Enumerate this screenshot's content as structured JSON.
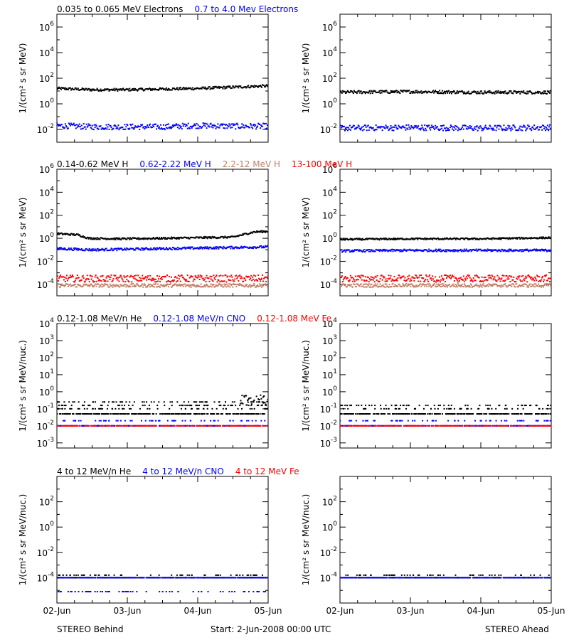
{
  "colors": {
    "black": "#000000",
    "blue": "#0000ff",
    "red": "#ff0000",
    "brown": "#c08068"
  },
  "footer": {
    "left": "STEREO Behind",
    "center": "Start:  2-Jun-2008 00:00 UTC",
    "right": "STEREO Ahead"
  },
  "xaxis": {
    "ticks": [
      "02-Jun",
      "03-Jun",
      "04-Jun",
      "05-Jun"
    ]
  },
  "rows": [
    {
      "id": "electrons",
      "ylabel": "1/(cm² s sr MeV)",
      "log_min": -3,
      "log_max": 7,
      "ticks": [
        {
          "label": "10",
          "exp": "-2",
          "v": -2
        },
        {
          "label": "10",
          "exp": "0",
          "v": 0
        },
        {
          "label": "10",
          "exp": "2",
          "v": 2
        },
        {
          "label": "10",
          "exp": "4",
          "v": 4
        },
        {
          "label": "10",
          "exp": "6",
          "v": 6
        }
      ],
      "legend": [
        {
          "text": "0.035 to 0.065 MeV Electrons",
          "color": "#000000"
        },
        {
          "text": "0.7 to 4.0 Mev Electrons",
          "color": "#0000ff"
        }
      ]
    },
    {
      "id": "protons",
      "ylabel": "1/(cm² s sr MeV)",
      "log_min": -5,
      "log_max": 6,
      "ticks": [
        {
          "label": "10",
          "exp": "-4",
          "v": -4
        },
        {
          "label": "10",
          "exp": "-2",
          "v": -2
        },
        {
          "label": "10",
          "exp": "0",
          "v": 0
        },
        {
          "label": "10",
          "exp": "2",
          "v": 2
        },
        {
          "label": "10",
          "exp": "4",
          "v": 4
        },
        {
          "label": "10",
          "exp": "6",
          "v": 6
        }
      ],
      "legend": [
        {
          "text": "0.14-0.62 MeV H",
          "color": "#000000"
        },
        {
          "text": "0.62-2.22 MeV H",
          "color": "#0000ff"
        },
        {
          "text": "2.2-12 MeV H",
          "color": "#c08068"
        },
        {
          "text": "13-100 MeV H",
          "color": "#ff0000"
        }
      ]
    },
    {
      "id": "heavy_low",
      "ylabel": "1/(cm² s sr MeV/nuc.)",
      "log_min": -3.3,
      "log_max": 4,
      "ticks": [
        {
          "label": "10",
          "exp": "-3",
          "v": -3
        },
        {
          "label": "10",
          "exp": "-2",
          "v": -2
        },
        {
          "label": "10",
          "exp": "-1",
          "v": -1
        },
        {
          "label": "10",
          "exp": "0",
          "v": 0
        },
        {
          "label": "10",
          "exp": "1",
          "v": 1
        },
        {
          "label": "10",
          "exp": "2",
          "v": 2
        },
        {
          "label": "10",
          "exp": "3",
          "v": 3
        },
        {
          "label": "10",
          "exp": "4",
          "v": 4
        }
      ],
      "legend": [
        {
          "text": "0.12-1.08 MeV/n He",
          "color": "#000000"
        },
        {
          "text": "0.12-1.08 MeV/n CNO",
          "color": "#0000ff"
        },
        {
          "text": "0.12-1.08 MeV Fe",
          "color": "#ff0000"
        }
      ]
    },
    {
      "id": "heavy_high",
      "ylabel": "1/(cm² s sr MeV/nuc.)",
      "log_min": -6,
      "log_max": 4,
      "ticks": [
        {
          "label": "10",
          "exp": "-4",
          "v": -4
        },
        {
          "label": "10",
          "exp": "-2",
          "v": -2
        },
        {
          "label": "10",
          "exp": "0",
          "v": 0
        },
        {
          "label": "10",
          "exp": "2",
          "v": 2
        }
      ],
      "legend": [
        {
          "text": "4 to 12 MeV/n He",
          "color": "#000000"
        },
        {
          "text": "4 to 12 MeV/n CNO",
          "color": "#0000ff"
        },
        {
          "text": "4 to 12 MeV Fe",
          "color": "#ff0000"
        }
      ]
    }
  ],
  "chart_data": [
    {
      "type": "scatter",
      "spacecraft": "Behind",
      "row": "electrons",
      "yscale": "log",
      "x_range_days": [
        0,
        3
      ],
      "series": [
        {
          "name": "0.035 to 0.065 MeV Electrons",
          "color": "#000000",
          "x": [
            0,
            0.5,
            1,
            1.5,
            2,
            2.5,
            3
          ],
          "y_log10": [
            1.2,
            1.1,
            1.1,
            1.15,
            1.2,
            1.3,
            1.4
          ],
          "spread": 0.1
        },
        {
          "name": "0.7 to 4.0 Mev Electrons",
          "color": "#0000ff",
          "x": [
            0,
            0.5,
            1,
            1.5,
            2,
            2.5,
            3
          ],
          "y_log10": [
            -1.7,
            -1.8,
            -1.8,
            -1.8,
            -1.7,
            -1.75,
            -1.75
          ],
          "spread": 0.22
        }
      ]
    },
    {
      "type": "scatter",
      "spacecraft": "Ahead",
      "row": "electrons",
      "yscale": "log",
      "x_range_days": [
        0,
        3
      ],
      "series": [
        {
          "name": "0.035 to 0.065 MeV Electrons",
          "color": "#000000",
          "x": [
            0,
            1,
            2,
            3
          ],
          "y_log10": [
            0.9,
            0.95,
            0.9,
            0.9
          ],
          "spread": 0.12
        },
        {
          "name": "0.7 to 4.0 Mev Electrons",
          "color": "#0000ff",
          "x": [
            0,
            1,
            2,
            3
          ],
          "y_log10": [
            -1.9,
            -1.85,
            -1.9,
            -1.85
          ],
          "spread": 0.22
        }
      ]
    },
    {
      "type": "scatter",
      "spacecraft": "Behind",
      "row": "protons",
      "yscale": "log",
      "x_range_days": [
        0,
        3
      ],
      "series": [
        {
          "name": "0.14-0.62 MeV H",
          "color": "#000000",
          "x": [
            0,
            0.3,
            0.45,
            0.9,
            1.5,
            2.0,
            2.5,
            2.8,
            3
          ],
          "y_log10": [
            0.4,
            0.3,
            0,
            -0.05,
            0,
            0.05,
            0.1,
            0.55,
            0.6
          ],
          "spread": 0.08
        },
        {
          "name": "0.62-2.22 MeV H",
          "color": "#0000ff",
          "x": [
            0,
            0.5,
            1,
            1.5,
            2,
            2.5,
            3
          ],
          "y_log10": [
            -0.9,
            -1.0,
            -0.95,
            -0.9,
            -0.85,
            -0.8,
            -0.75
          ],
          "spread": 0.1
        },
        {
          "name": "2.2-12 MeV H",
          "color": "#c08068",
          "x": [
            0,
            3
          ],
          "y_log10": [
            -4.1,
            -4.1
          ],
          "spread": 0.15
        },
        {
          "name": "13-100 MeV H",
          "color": "#ff0000",
          "x": [
            0,
            3
          ],
          "y_log10": [
            -3.5,
            -3.5
          ],
          "spread": 0.3
        }
      ]
    },
    {
      "type": "scatter",
      "spacecraft": "Ahead",
      "row": "protons",
      "yscale": "log",
      "x_range_days": [
        0,
        3
      ],
      "series": [
        {
          "name": "0.14-0.62 MeV H",
          "color": "#000000",
          "x": [
            0,
            1,
            2,
            3
          ],
          "y_log10": [
            -0.1,
            -0.05,
            -0.05,
            0.05
          ],
          "spread": 0.07
        },
        {
          "name": "0.62-2.22 MeV H",
          "color": "#0000ff",
          "x": [
            0,
            1,
            2,
            3
          ],
          "y_log10": [
            -1.1,
            -1.05,
            -1.05,
            -1.05
          ],
          "spread": 0.1
        },
        {
          "name": "2.2-12 MeV H",
          "color": "#c08068",
          "x": [
            0,
            3
          ],
          "y_log10": [
            -4.1,
            -4.1
          ],
          "spread": 0.15
        },
        {
          "name": "13-100 MeV H",
          "color": "#ff0000",
          "x": [
            0,
            3
          ],
          "y_log10": [
            -3.5,
            -3.5
          ],
          "spread": 0.3
        }
      ]
    },
    {
      "type": "scatter",
      "spacecraft": "Behind",
      "row": "heavy_low",
      "yscale": "log",
      "x_range_days": [
        0,
        3
      ],
      "series": [
        {
          "name": "0.12-1.08 MeV/n He",
          "color": "#000000",
          "levels_log10": [
            -1.3,
            -1.0,
            -0.8,
            -0.6
          ],
          "burst_log10": -0.5
        },
        {
          "name": "0.12-1.08 MeV/n CNO",
          "color": "#0000ff",
          "levels_log10": [
            -2.0,
            -1.7
          ]
        },
        {
          "name": "0.12-1.08 MeV Fe",
          "color": "#ff0000",
          "levels_log10": [
            -2.0
          ]
        }
      ]
    },
    {
      "type": "scatter",
      "spacecraft": "Ahead",
      "row": "heavy_low",
      "yscale": "log",
      "x_range_days": [
        0,
        3
      ],
      "series": [
        {
          "name": "0.12-1.08 MeV/n He",
          "color": "#000000",
          "levels_log10": [
            -1.3,
            -1.0,
            -0.8
          ]
        },
        {
          "name": "0.12-1.08 MeV/n CNO",
          "color": "#0000ff",
          "levels_log10": [
            -2.0,
            -1.7
          ]
        },
        {
          "name": "0.12-1.08 MeV Fe",
          "color": "#ff0000",
          "levels_log10": [
            -2.0
          ]
        }
      ]
    },
    {
      "type": "scatter",
      "spacecraft": "Behind",
      "row": "heavy_high",
      "yscale": "log",
      "x_range_days": [
        0,
        3
      ],
      "series": [
        {
          "name": "4 to 12 MeV/n He",
          "color": "#000000",
          "levels_log10": [
            -4.0,
            -3.8
          ]
        },
        {
          "name": "4 to 12 MeV/n CNO",
          "color": "#0000ff",
          "levels_log10": [
            -4.0,
            -5.1
          ]
        },
        {
          "name": "4 to 12 MeV Fe",
          "color": "#ff0000",
          "levels_log10": []
        }
      ]
    },
    {
      "type": "scatter",
      "spacecraft": "Ahead",
      "row": "heavy_high",
      "yscale": "log",
      "x_range_days": [
        0,
        3
      ],
      "series": [
        {
          "name": "4 to 12 MeV/n He",
          "color": "#000000",
          "levels_log10": [
            -4.0,
            -3.8
          ]
        },
        {
          "name": "4 to 12 MeV/n CNO",
          "color": "#0000ff",
          "levels_log10": [
            -4.0
          ]
        },
        {
          "name": "4 to 12 MeV Fe",
          "color": "#ff0000",
          "levels_log10": []
        }
      ]
    }
  ]
}
